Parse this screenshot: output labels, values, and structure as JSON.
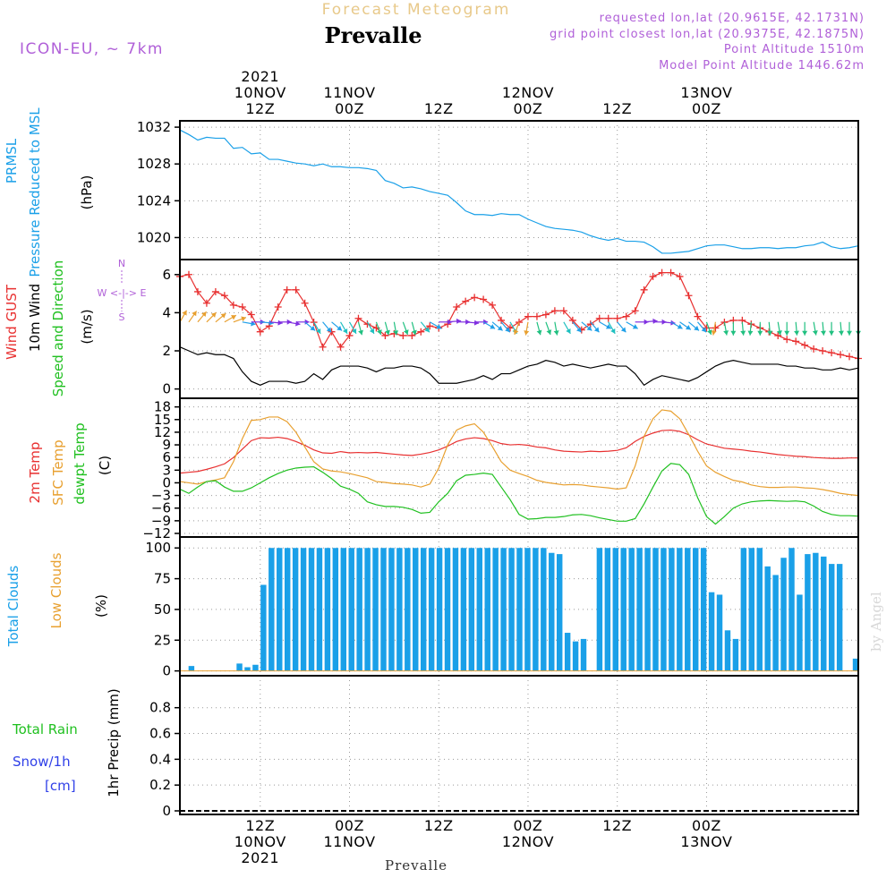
{
  "header": {
    "product": "Forecast Meteogram",
    "title": "Prevalle",
    "model": "ICON-EU, ~ 7km",
    "info_lines": [
      "requested lon,lat (20.9615E, 42.1731N)",
      "grid point closest lon,lat (20.9375E, 42.1875N)",
      "Point Altitude 1510m",
      "Model Point Altitude 1446.62m"
    ],
    "footer_label": "Prevalle",
    "credit": "by Angel",
    "colors": {
      "header_gold": "#e8c98a",
      "info_purple": "#b060d8",
      "title": "#000000"
    }
  },
  "time_axis": {
    "x_start": 0,
    "x_end": 76,
    "top_ticks": [
      {
        "x": 9,
        "lines": [
          "2021",
          "10NOV",
          "12Z"
        ]
      },
      {
        "x": 19,
        "lines": [
          "11NOV",
          "00Z"
        ]
      },
      {
        "x": 29,
        "lines": [
          "12Z"
        ]
      },
      {
        "x": 39,
        "lines": [
          "12NOV",
          "00Z"
        ]
      },
      {
        "x": 49,
        "lines": [
          "12Z"
        ]
      },
      {
        "x": 59,
        "lines": [
          "13NOV",
          "00Z"
        ]
      }
    ],
    "bottom_ticks": [
      {
        "x": 9,
        "lines": [
          "12Z",
          "10NOV",
          "2021"
        ]
      },
      {
        "x": 19,
        "lines": [
          "00Z",
          "11NOV"
        ]
      },
      {
        "x": 29,
        "lines": [
          "12Z"
        ]
      },
      {
        "x": 39,
        "lines": [
          "00Z",
          "12NOV"
        ]
      },
      {
        "x": 49,
        "lines": [
          "12Z"
        ]
      },
      {
        "x": 59,
        "lines": [
          "00Z",
          "13NOV"
        ]
      }
    ]
  },
  "chart_data": [
    {
      "type": "line",
      "panel": "pressure",
      "ylabel_lines": [
        {
          "text": "PRMSL",
          "color": "#1aa0e8"
        },
        {
          "text": "Pressure Reduced to MSL",
          "color": "#1aa0e8"
        },
        {
          "text": "(hPa)",
          "color": "#000000"
        }
      ],
      "ylim": [
        1018,
        1032.3
      ],
      "yticks": [
        1020,
        1024,
        1028,
        1032
      ],
      "series": [
        {
          "color": "#1aa0e8",
          "values": [
            1031.7,
            1031.2,
            1030.6,
            1030.9,
            1030.8,
            1030.8,
            1029.7,
            1029.8,
            1029.1,
            1029.2,
            1028.5,
            1028.5,
            1028.3,
            1028.1,
            1028.0,
            1027.8,
            1028.0,
            1027.7,
            1027.7,
            1027.6,
            1027.6,
            1027.5,
            1027.3,
            1026.2,
            1025.9,
            1025.4,
            1025.5,
            1025.3,
            1025.0,
            1024.8,
            1024.6,
            1023.8,
            1022.9,
            1022.5,
            1022.5,
            1022.4,
            1022.6,
            1022.5,
            1022.5,
            1022.0,
            1021.6,
            1021.2,
            1021.0,
            1020.9,
            1020.8,
            1020.6,
            1020.2,
            1019.9,
            1019.7,
            1019.9,
            1019.6,
            1019.6,
            1019.5,
            1019.0,
            1018.3,
            1018.3,
            1018.4,
            1018.5,
            1018.8,
            1019.1,
            1019.2,
            1019.2,
            1019.0,
            1018.8,
            1018.8,
            1018.9,
            1018.9,
            1018.8,
            1018.9,
            1018.9,
            1019.1,
            1019.2,
            1019.5,
            1019.0,
            1018.8,
            1018.9,
            1019.1
          ]
        }
      ]
    },
    {
      "type": "line",
      "panel": "wind",
      "ylabel_lines": [
        {
          "text": "Wind GUST",
          "color": "#e83030"
        },
        {
          "text": "10m Wind",
          "color": "#000000"
        },
        {
          "text": "(m/s)",
          "color": "#000000"
        },
        {
          "text": "Speed and Direction",
          "color": "#20c020"
        }
      ],
      "compass": [
        "N",
        "S",
        "W <-|-> E"
      ],
      "ylim": [
        -0.3,
        6.6
      ],
      "yticks": [
        0,
        2,
        4,
        6
      ],
      "series": [
        {
          "name": "Wind GUST",
          "color": "#e83030",
          "marker": "+",
          "values": [
            5.9,
            6.0,
            5.1,
            4.5,
            5.1,
            4.9,
            4.4,
            4.3,
            3.9,
            3.0,
            3.3,
            4.3,
            5.2,
            5.2,
            4.5,
            3.5,
            2.2,
            3.0,
            2.2,
            2.8,
            3.7,
            3.4,
            3.2,
            2.8,
            2.9,
            2.8,
            2.8,
            3.0,
            3.3,
            3.2,
            3.4,
            4.3,
            4.6,
            4.8,
            4.7,
            4.4,
            3.6,
            3.2,
            3.5,
            3.8,
            3.8,
            3.9,
            4.1,
            4.1,
            3.6,
            3.1,
            3.4,
            3.7,
            3.7,
            3.7,
            3.8,
            4.1,
            5.2,
            5.9,
            6.1,
            6.1,
            5.9,
            4.9,
            3.8,
            3.2,
            3.2,
            3.5,
            3.6,
            3.6,
            3.4,
            3.2,
            3.0,
            2.8,
            2.6,
            2.5,
            2.3,
            2.1,
            2.0,
            1.9,
            1.8,
            1.7,
            1.6
          ]
        },
        {
          "name": "10m Wind",
          "color": "#000000",
          "values": [
            2.2,
            2.0,
            1.8,
            1.9,
            1.8,
            1.8,
            1.6,
            0.9,
            0.4,
            0.2,
            0.4,
            0.4,
            0.4,
            0.3,
            0.4,
            0.8,
            0.5,
            1.0,
            1.2,
            1.2,
            1.2,
            1.1,
            0.9,
            1.1,
            1.1,
            1.2,
            1.2,
            1.1,
            0.8,
            0.3,
            0.3,
            0.3,
            0.4,
            0.5,
            0.7,
            0.5,
            0.8,
            0.8,
            1.0,
            1.2,
            1.3,
            1.5,
            1.4,
            1.2,
            1.3,
            1.2,
            1.1,
            1.2,
            1.3,
            1.2,
            1.2,
            0.8,
            0.2,
            0.5,
            0.7,
            0.6,
            0.5,
            0.4,
            0.6,
            0.9,
            1.2,
            1.4,
            1.5,
            1.4,
            1.3,
            1.3,
            1.3,
            1.3,
            1.2,
            1.2,
            1.1,
            1.1,
            1.0,
            1.0,
            1.1,
            1.0,
            1.1
          ]
        }
      ],
      "arrows": {
        "y": 3.7,
        "colors": [
          "#e8a030",
          "#e8a030",
          "#e8a030",
          "#e8a030",
          "#e8a030",
          "#e8a030",
          "#e8a030",
          "#20a0e8",
          "#8030e0",
          "#20a0e8",
          "#8030e0",
          "#8030e0",
          "#8030e0",
          "#8030e0",
          "#20a0e8",
          "#20c0c0",
          "#20a0e8",
          "#20a0e8",
          "#20c0c0",
          "#20c0c0",
          "#20c080",
          "#20c0c0",
          "#20c080",
          "#20c080",
          "#20c080",
          "#20c080",
          "#20c080",
          "#20c0c0",
          "#20a0e8",
          "#8030e0",
          "#8030e0",
          "#8030e0",
          "#8030e0",
          "#8030e0",
          "#20a0e8",
          "#20a0e8",
          "#20a0e8",
          "#20c0c0",
          "#e8a030",
          "#e8a030",
          "#20c080",
          "#20c080",
          "#20c080",
          "#20c0c0",
          "#20a0e8",
          "#20a0e8",
          "#20a0e8",
          "#20a0e8",
          "#20c0c0",
          "#20a0e8",
          "#20a0e8",
          "#8030e0",
          "#8030e0",
          "#8030e0",
          "#8030e0",
          "#20a0e8",
          "#20a0e8",
          "#20a0e8",
          "#20a0e8",
          "#20c080",
          "#e8a030",
          "#20c080",
          "#20c080",
          "#20c080",
          "#20c080",
          "#20c080",
          "#20c080",
          "#20c080",
          "#20c080",
          "#20c080",
          "#20c080",
          "#20c080",
          "#20c080",
          "#20c080",
          "#20c080",
          "#20c080",
          "#20c080"
        ],
        "dirs": [
          210,
          215,
          220,
          225,
          230,
          240,
          250,
          280,
          270,
          275,
          275,
          270,
          280,
          270,
          310,
          330,
          320,
          310,
          330,
          330,
          345,
          330,
          340,
          345,
          350,
          340,
          345,
          320,
          300,
          270,
          265,
          270,
          275,
          270,
          300,
          310,
          320,
          330,
          20,
          10,
          345,
          340,
          350,
          330,
          320,
          310,
          320,
          300,
          330,
          320,
          300,
          270,
          265,
          270,
          275,
          300,
          305,
          310,
          320,
          340,
          10,
          350,
          0,
          355,
          5,
          0,
          355,
          350,
          0,
          355,
          0,
          350,
          355,
          0,
          355,
          0,
          0
        ]
      }
    },
    {
      "type": "line",
      "panel": "temperature",
      "ylabel_lines": [
        {
          "text": "2m Temp",
          "color": "#e83030"
        },
        {
          "text": "SFC Temp",
          "color": "#e8a030"
        },
        {
          "text": "dewpt Temp",
          "color": "#20c020"
        },
        {
          "text": "(C)",
          "color": "#000000"
        }
      ],
      "ylim": [
        -12,
        19.2
      ],
      "yticks": [
        -12,
        -9,
        -6,
        -3,
        0,
        3,
        6,
        9,
        12,
        15,
        18
      ],
      "ytick_labels": [
        "−12",
        "−9",
        "−6",
        "−3",
        "0",
        "3",
        "6",
        "9",
        "12",
        "15",
        "18"
      ],
      "series": [
        {
          "name": "2m Temp",
          "color": "#e83030",
          "values": [
            2.3,
            2.5,
            2.7,
            3.2,
            3.8,
            4.5,
            6.0,
            8.0,
            10.0,
            10.7,
            10.6,
            10.8,
            10.5,
            9.8,
            8.9,
            7.8,
            7.1,
            7.0,
            7.4,
            7.1,
            7.2,
            7.1,
            7.2,
            7.0,
            6.8,
            6.6,
            6.5,
            6.8,
            7.2,
            7.8,
            8.7,
            9.8,
            10.4,
            10.7,
            10.5,
            10.0,
            9.3,
            9.0,
            9.1,
            8.9,
            8.5,
            8.3,
            7.8,
            7.5,
            7.4,
            7.3,
            7.5,
            7.4,
            7.5,
            7.7,
            8.3,
            9.8,
            11.0,
            11.8,
            12.4,
            12.5,
            12.2,
            11.4,
            10.2,
            9.2,
            8.7,
            8.2,
            8.0,
            7.8,
            7.5,
            7.3,
            7.0,
            6.7,
            6.5,
            6.3,
            6.2,
            6.0,
            5.9,
            5.8,
            5.8,
            5.9,
            5.9
          ]
        },
        {
          "name": "SFC Temp",
          "color": "#e8a030",
          "values": [
            0.3,
            0,
            -0.3,
            0.3,
            0.7,
            1.2,
            5.0,
            10.5,
            14.8,
            15.0,
            15.6,
            15.6,
            14.5,
            12.0,
            8.5,
            5.0,
            3.3,
            2.8,
            2.6,
            2.2,
            1.7,
            1.2,
            0.3,
            0.1,
            -0.2,
            -0.3,
            -0.5,
            -1.0,
            -0.3,
            3.5,
            9.0,
            12.5,
            13.5,
            14.0,
            12.0,
            8.6,
            5.0,
            3.0,
            2.2,
            1.5,
            0.6,
            0.1,
            -0.2,
            -0.5,
            -0.4,
            -0.5,
            -0.8,
            -1.0,
            -1.2,
            -1.5,
            -1.2,
            4.0,
            11.0,
            15.2,
            17.3,
            17.0,
            15.2,
            11.5,
            7.5,
            4.0,
            2.5,
            1.5,
            0.6,
            0.2,
            -0.5,
            -0.9,
            -1.1,
            -1.1,
            -1.0,
            -1.0,
            -1.2,
            -1.3,
            -1.6,
            -2.0,
            -2.5,
            -2.8,
            -3.0
          ]
        },
        {
          "name": "dewpt Temp",
          "color": "#20c020",
          "values": [
            -1.5,
            -2.5,
            -1.0,
            0.3,
            0.5,
            -1.0,
            -2.0,
            -2.0,
            -1.2,
            0,
            1.2,
            2.2,
            3.0,
            3.5,
            3.7,
            3.8,
            2.5,
            1.0,
            -0.8,
            -1.5,
            -2.5,
            -4.5,
            -5.2,
            -5.6,
            -5.6,
            -5.8,
            -6.3,
            -7.2,
            -7.0,
            -4.5,
            -2.5,
            0.5,
            1.8,
            2.0,
            2.3,
            2.0,
            -1.0,
            -4.0,
            -7.5,
            -8.6,
            -8.5,
            -8.2,
            -8.2,
            -8.0,
            -7.6,
            -7.5,
            -7.8,
            -8.3,
            -8.7,
            -9.1,
            -9.1,
            -8.5,
            -5.0,
            -1.0,
            2.8,
            4.6,
            4.3,
            2.0,
            -3.5,
            -8.0,
            -9.8,
            -8.0,
            -6.0,
            -5.0,
            -4.5,
            -4.3,
            -4.2,
            -4.3,
            -4.4,
            -4.3,
            -4.5,
            -5.5,
            -6.8,
            -7.5,
            -7.8,
            -7.8,
            -7.9
          ]
        }
      ]
    },
    {
      "type": "bar",
      "panel": "clouds",
      "ylabel_lines": [
        {
          "text": "Total Clouds",
          "color": "#1aa0e8"
        },
        {
          "text": "Low Clouds",
          "color": "#e8a030"
        },
        {
          "text": "(%)",
          "color": "#000000"
        }
      ],
      "ylim": [
        -1,
        106
      ],
      "yticks": [
        0,
        25,
        50,
        75,
        100
      ],
      "series": [
        {
          "name": "Total Clouds",
          "color": "#1aa0e8",
          "values": [
            0,
            0,
            4,
            0,
            0,
            0,
            0,
            0,
            6,
            3,
            5,
            70,
            100,
            100,
            100,
            100,
            100,
            100,
            100,
            100,
            100,
            100,
            100,
            100,
            100,
            100,
            100,
            100,
            100,
            100,
            100,
            100,
            100,
            100,
            100,
            100,
            100,
            100,
            100,
            100,
            100,
            100,
            100,
            100,
            100,
            100,
            100,
            96,
            95,
            31,
            24,
            26,
            0,
            100,
            100,
            100,
            100,
            100,
            100,
            100,
            100,
            100,
            100,
            100,
            100,
            100,
            100,
            64,
            62,
            33,
            26,
            100,
            100,
            100,
            85,
            78,
            92,
            100,
            62,
            95,
            96,
            93,
            87,
            87,
            0,
            10
          ]
        }
      ],
      "bar_x_offset": -0.5,
      "bar_step": 0.8965
    },
    {
      "type": "line",
      "panel": "precip",
      "ylabel_lines": [
        {
          "text": "Total  Rain",
          "color": "#20c020"
        },
        {
          "text": "Snow/1h",
          "color": "#3040e8"
        },
        {
          "text": "[cm]",
          "color": "#3040e8"
        },
        {
          "text": "1hr Precip (mm)",
          "color": "#000000"
        }
      ],
      "ylim": [
        0,
        1.02
      ],
      "yticks": [
        0,
        0.2,
        0.4,
        0.6,
        0.8
      ],
      "ytick_labels": [
        "0",
        "0.2",
        "0.4",
        "0.6",
        "0.8"
      ],
      "series": [
        {
          "name": "1hr Precip",
          "color": "#000000",
          "values": [
            0,
            0,
            0,
            0,
            0,
            0,
            0,
            0,
            0,
            0,
            0,
            0,
            0,
            0,
            0,
            0,
            0,
            0,
            0,
            0,
            0,
            0,
            0,
            0,
            0,
            0,
            0,
            0,
            0,
            0,
            0,
            0,
            0,
            0,
            0,
            0,
            0,
            0,
            0,
            0,
            0,
            0,
            0,
            0,
            0,
            0,
            0,
            0,
            0,
            0,
            0,
            0,
            0,
            0,
            0,
            0,
            0,
            0,
            0,
            0,
            0,
            0,
            0,
            0,
            0,
            0,
            0,
            0,
            0,
            0,
            0,
            0,
            0,
            0,
            0,
            0,
            0
          ]
        }
      ]
    }
  ]
}
